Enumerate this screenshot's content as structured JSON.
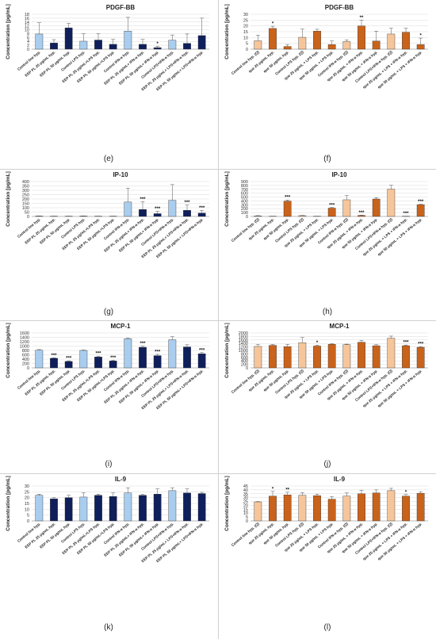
{
  "chart_data": [
    {
      "id": "e",
      "letter": "(e)",
      "type": "bar",
      "title": "PDGF-BB",
      "ylabel": "Concentration [pg/mL]",
      "ylim": [
        0,
        18
      ],
      "yticks": [
        0,
        2,
        4,
        6,
        8,
        10,
        12,
        14,
        16,
        18
      ],
      "categories": [
        "Control line hyp.",
        "EEP PL 25 μg/mL hyp.",
        "EEP PL 50 μg/mL hyp.",
        "Control LPS hyp.",
        "EEP PL 25 μg/mL+LPS hyp.",
        "EEP PL 50 μg/mL+LPS hyp.",
        "Control IFN-α hyp.",
        "EEP PL 25 μg/mL+ IFN-α hyp.",
        "EEP PL 50 μg/mL+ IFN-α hyp.",
        "Control LPS+IFN-α hyp.",
        "EEP PL 25 μg/mL+ LPS+IFN-α hyp.",
        "EEP PL 50 μg/mL+ LPS+IFN-α hyp."
      ],
      "values": [
        7.8,
        3.2,
        11.0,
        4.1,
        4.7,
        2.5,
        9.3,
        2.5,
        0.8,
        4.6,
        3.0,
        7.0
      ],
      "errors": [
        5.8,
        1.7,
        2.3,
        3.8,
        3.4,
        2.5,
        7.1,
        2.5,
        0.6,
        2.7,
        4.8,
        9.0
      ],
      "colors": [
        "#a9cdee",
        "#0e1f5c",
        "#0e1f5c",
        "#a9cdee",
        "#0e1f5c",
        "#0e1f5c",
        "#a9cdee",
        "#0e1f5c",
        "#0e1f5c",
        "#a9cdee",
        "#0e1f5c",
        "#0e1f5c"
      ],
      "sig": [
        "",
        "",
        "",
        "",
        "",
        "",
        "",
        "",
        "*",
        "",
        "",
        ""
      ]
    },
    {
      "id": "f",
      "letter": "(f)",
      "type": "bar",
      "title": "PDGF-BB",
      "ylabel": "Concentration [pg/mL]",
      "ylim": [
        0,
        30
      ],
      "yticks": [
        0,
        5,
        10,
        15,
        20,
        25,
        30
      ],
      "categories": [
        "Control line hyp. (Q)",
        "que 25 μg/mL hyp.",
        "que 50 μg/mL hyp.",
        "Control LPS hyp. (Q)",
        "que 25 μg/mL + LPS hyp.",
        "que 50 μg/mL + LPS hyp.",
        "Control IFN-α hyp. (Q)",
        "que 25 μg/mL + IFN-α hyp.",
        "que 50 μg/mL + IFN-α hyp.",
        "Control LPS+IFN-α hyp. (Q)",
        "que 25 μg/mL + LPS + IFN-α hyp.",
        "que 50 μg/mL + LPS + IFN-α hyp."
      ],
      "values": [
        7.2,
        17.8,
        2.3,
        10.2,
        15.5,
        4.0,
        6.5,
        20.0,
        7.0,
        13.0,
        14.5,
        4.0
      ],
      "errors": [
        4.8,
        1.9,
        1.7,
        7.0,
        1.6,
        3.0,
        1.5,
        5.0,
        8.5,
        5.0,
        3.5,
        5.5
      ],
      "colors": [
        "#f6c59a",
        "#c9621a",
        "#c9621a",
        "#f6c59a",
        "#c9621a",
        "#c9621a",
        "#f6c59a",
        "#c9621a",
        "#c9621a",
        "#f6c59a",
        "#c9621a",
        "#c9621a"
      ],
      "sig": [
        "",
        "*",
        "",
        "",
        "",
        "",
        "",
        "**",
        "",
        "",
        "",
        "*"
      ]
    },
    {
      "id": "g",
      "letter": "(g)",
      "type": "bar",
      "title": "IP-10",
      "ylabel": "Concentration [pg/mL]",
      "ylim": [
        0,
        400
      ],
      "yticks": [
        0,
        50,
        100,
        150,
        200,
        250,
        300,
        350,
        400
      ],
      "categories": [
        "Control line hyp.",
        "EEP PL 25 μg/mL hyp.",
        "EEP PL 50 μg/mL hyp.",
        "Control LPS hyp.",
        "EEP PL 25 μg/mL+LPS hyp.",
        "EEP PL 50 μg/mL+LPS hyp.",
        "Control IFN-α hyp.",
        "EEP PL 25 μg/mL+ IFN-α hyp.",
        "EEP PL 50 μg/mL+ IFN-α hyp.",
        "Control LPS+IFN-α hyp.",
        "EEP PL 25 μg/mL+ LPS+IFN-α hyp.",
        "EEP PL 50 μg/mL+ LPS+IFN-α hyp."
      ],
      "values": [
        5,
        3,
        3,
        5,
        3,
        3,
        165,
        80,
        32,
        185,
        70,
        38
      ],
      "errors": [
        2,
        1,
        1,
        2,
        1,
        1,
        160,
        90,
        25,
        180,
        60,
        30
      ],
      "colors": [
        "#a9cdee",
        "#0e1f5c",
        "#0e1f5c",
        "#a9cdee",
        "#0e1f5c",
        "#0e1f5c",
        "#a9cdee",
        "#0e1f5c",
        "#0e1f5c",
        "#a9cdee",
        "#0e1f5c",
        "#0e1f5c"
      ],
      "sig": [
        "",
        "",
        "",
        "",
        "",
        "",
        "",
        "***",
        "***",
        "",
        "***",
        "***"
      ]
    },
    {
      "id": "h",
      "letter": "(h)",
      "type": "bar",
      "title": "IP-10",
      "ylabel": "Concentration [pg/mL]",
      "ylim": [
        0,
        900
      ],
      "yticks": [
        0,
        100,
        200,
        300,
        400,
        500,
        600,
        700,
        800,
        900
      ],
      "categories": [
        "Control line hyp. (Q)",
        "que 25 μg/mL hyp.",
        "que 50 μg/mL hyp.",
        "Control LPS hyp. (Q)",
        "que 25 μg/mL + LPS hyp.",
        "que 50 μg/mL + LPS hyp.",
        "Control IFN-α hyp. (Q)",
        "que 25 μg/mL + IFN-α hyp.",
        "que 50 μg/mL + IFN-α hyp.",
        "Control LPS+IFN-α hyp. (Q)",
        "que 25 μg/mL + LPS + IFN-α hyp.",
        "que 50 μg/mL + LPS + IFN-α hyp."
      ],
      "values": [
        15,
        5,
        395,
        22,
        5,
        215,
        430,
        25,
        450,
        705,
        5,
        305
      ],
      "errors": [
        8,
        3,
        30,
        8,
        3,
        15,
        110,
        8,
        35,
        100,
        3,
        10
      ],
      "colors": [
        "#f6c59a",
        "#c9621a",
        "#c9621a",
        "#f6c59a",
        "#c9621a",
        "#c9621a",
        "#f6c59a",
        "#c9621a",
        "#c9621a",
        "#f6c59a",
        "#c9621a",
        "#c9621a"
      ],
      "sig": [
        "",
        "",
        "***",
        "",
        "",
        "***",
        "",
        "***",
        "",
        "",
        "***",
        "***"
      ]
    },
    {
      "id": "i",
      "letter": "(i)",
      "type": "bar",
      "title": "MCP-1",
      "ylabel": "Concentration [pg/mL]",
      "ylim": [
        0,
        1600
      ],
      "yticks": [
        0,
        200,
        400,
        600,
        800,
        1000,
        1200,
        1400,
        1600
      ],
      "categories": [
        "Control line hyp.",
        "EEP PL 25 μg/mL hyp.",
        "EEP PL 50 μg/mL hyp.",
        "Control LPS hyp.",
        "EEP PL 25 μg/mL+LPS hyp.",
        "EEP PL 50 μg/mL+LPS hyp.",
        "Control IFN-α hyp.",
        "EEP PL 25 μg/mL+ IFN-α hyp.",
        "EEP PL 50 μg/mL+ IFN-α hyp.",
        "Control LPS+IFN-α hyp.",
        "EEP PL 25 μg/mL+ LPS+IFN-α hyp.",
        "EEP PL 50 μg/mL+ LPS+IFN-α hyp."
      ],
      "values": [
        810,
        440,
        295,
        800,
        500,
        320,
        1340,
        945,
        560,
        1290,
        960,
        650
      ],
      "errors": [
        30,
        20,
        30,
        20,
        40,
        30,
        20,
        50,
        60,
        140,
        100,
        50
      ],
      "colors": [
        "#a9cdee",
        "#0e1f5c",
        "#0e1f5c",
        "#a9cdee",
        "#0e1f5c",
        "#0e1f5c",
        "#a9cdee",
        "#0e1f5c",
        "#0e1f5c",
        "#a9cdee",
        "#0e1f5c",
        "#0e1f5c"
      ],
      "sig": [
        "",
        "***",
        "***",
        "",
        "***",
        "***",
        "",
        "***",
        "***",
        "",
        "",
        "***"
      ]
    },
    {
      "id": "j",
      "letter": "(j)",
      "type": "bar",
      "title": "MCP-1",
      "ylabel": "Concentration [pg/mL]",
      "ylim": [
        0,
        2000
      ],
      "yticks": [
        0,
        200,
        400,
        600,
        800,
        1000,
        1200,
        1400,
        1600,
        1800,
        2000
      ],
      "categories": [
        "Control line hyp. (Q)",
        "que 25 μg/mL hyp.",
        "que 50 μg/mL hyp.",
        "Control LPS hyp. (Q)",
        "que 25 μg/mL + LPS hyp.",
        "que 50 μg/mL + LPS hyp.",
        "Control IFN-α hyp. (Q)",
        "que 25 μg/mL + IFN-α hyp.",
        "que 50 μg/mL + IFN-α hyp.",
        "Control LPS+IFN-α hyp. (Q)",
        "que 25 μg/mL + LPS + IFN-α hyp.",
        "que 50 μg/mL + LPS + IFN-α hyp."
      ],
      "values": [
        1230,
        1290,
        1220,
        1440,
        1250,
        1350,
        1330,
        1470,
        1270,
        1700,
        1270,
        1180
      ],
      "errors": [
        110,
        50,
        120,
        300,
        50,
        30,
        30,
        110,
        60,
        120,
        40,
        40
      ],
      "colors": [
        "#f6c59a",
        "#c9621a",
        "#c9621a",
        "#f6c59a",
        "#c9621a",
        "#c9621a",
        "#f6c59a",
        "#c9621a",
        "#c9621a",
        "#f6c59a",
        "#c9621a",
        "#c9621a"
      ],
      "sig": [
        "",
        "",
        "",
        "",
        "*",
        "",
        "",
        "",
        "",
        "",
        "***",
        "***"
      ]
    },
    {
      "id": "k",
      "letter": "(k)",
      "type": "bar",
      "title": "IL-9",
      "ylabel": "Concentration [pg/mL]",
      "ylim": [
        0,
        30
      ],
      "yticks": [
        0,
        5,
        10,
        15,
        20,
        25,
        30
      ],
      "categories": [
        "Control line hyp.",
        "EEP PL 25 μg/mL hyp.",
        "EEP PL 50 μg/mL hyp.",
        "Control LPS hyp.",
        "EEP PL 25 μg/mL+LPS hyp.",
        "EEP PL 50 μg/mL+LPS hyp.",
        "Control IFN-α hyp.",
        "EEP PL 25 μg/mL+ IFN-α hyp.",
        "EEP PL 50 μg/mL+ IFN-α hyp.",
        "Control LPS+IFN-α hyp.",
        "EEP PL 25 μg/mL+ LPS+IFN-α hyp.",
        "EEP PL 50 μg/mL+ LPS+IFN-α hyp."
      ],
      "values": [
        22,
        19,
        20,
        20.5,
        22,
        21,
        24,
        22,
        23,
        26,
        24,
        23.5
      ],
      "errors": [
        1,
        1,
        2,
        3.5,
        1,
        3,
        4.5,
        0.8,
        4.5,
        2.5,
        3.5,
        1
      ],
      "colors": [
        "#a9cdee",
        "#0e1f5c",
        "#0e1f5c",
        "#a9cdee",
        "#0e1f5c",
        "#0e1f5c",
        "#a9cdee",
        "#0e1f5c",
        "#0e1f5c",
        "#a9cdee",
        "#0e1f5c",
        "#0e1f5c"
      ],
      "sig": [
        "",
        "",
        "",
        "",
        "",
        "",
        "",
        "",
        "",
        "",
        "",
        ""
      ]
    },
    {
      "id": "l",
      "letter": "(l)",
      "type": "bar",
      "title": "IL-9",
      "ylabel": "Concentration [pg/mL]",
      "ylim": [
        0,
        45
      ],
      "yticks": [
        0,
        5,
        10,
        15,
        20,
        25,
        30,
        35,
        40,
        45
      ],
      "categories": [
        "Control line hyp. (Q)",
        "que 25 μg/mL hyp.",
        "que 50 μg/mL hyp.",
        "Control LPS hyp. (Q)",
        "que 25 μg/mL + LPS hyp.",
        "que 50 μg/mL + LPS hyp.",
        "Control IFN-α hyp. (Q)",
        "que 25 μg/mL + IFN-α hyp.",
        "que 50 μg/mL + IFN-α hyp.",
        "Control LPS+IFN-α hyp. (Q)",
        "que 25 μg/mL + LPS + IFN-α hyp.",
        "que 50 μg/mL + LPS + IFN-α hyp."
      ],
      "values": [
        24.5,
        32,
        33.5,
        33,
        32.5,
        28,
        32,
        35,
        36,
        39,
        32,
        35.5
      ],
      "errors": [
        0.5,
        6,
        3.5,
        3.5,
        2,
        3.5,
        4,
        4.5,
        4,
        3,
        2,
        2
      ],
      "colors": [
        "#f6c59a",
        "#c9621a",
        "#c9621a",
        "#f6c59a",
        "#c9621a",
        "#c9621a",
        "#f6c59a",
        "#c9621a",
        "#c9621a",
        "#f6c59a",
        "#c9621a",
        "#c9621a"
      ],
      "sig": [
        "",
        "*",
        "**",
        "",
        "",
        "",
        "",
        "",
        "",
        "",
        "*",
        ""
      ]
    }
  ]
}
